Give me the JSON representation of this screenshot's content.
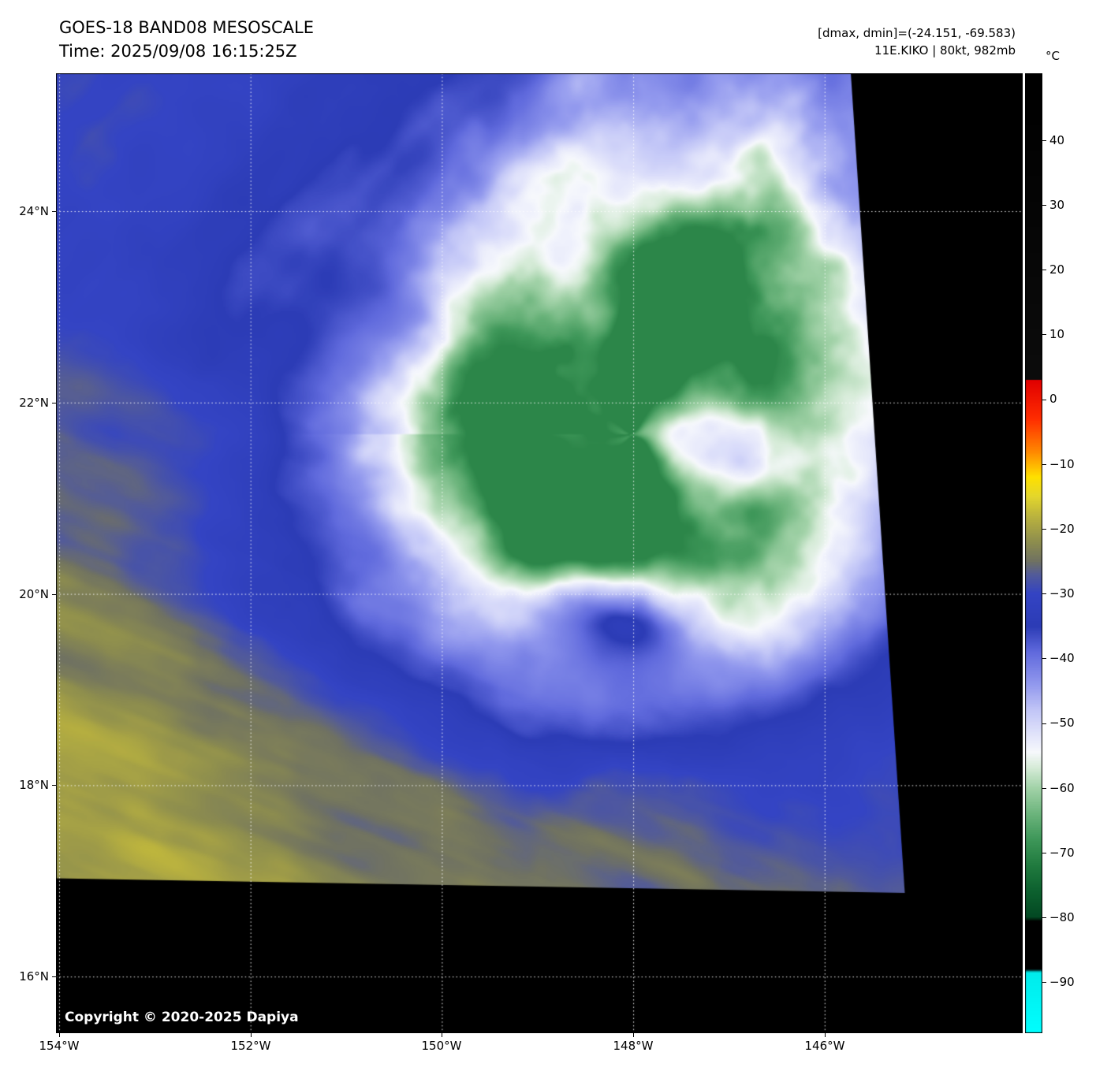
{
  "header": {
    "title": "GOES-18 BAND08 MESOSCALE",
    "time": "Time: 2025/09/08 16:15:25Z",
    "range_info": "[dmax, dmin]=(-24.151, -69.583)",
    "storm_info": "11E.KIKO | 80kt, 982mb"
  },
  "axes": {
    "lat": [
      "24°N",
      "22°N",
      "20°N",
      "18°N",
      "16°N"
    ],
    "lon": [
      "154°W",
      "152°W",
      "150°W",
      "148°W",
      "146°W"
    ]
  },
  "colorbar": {
    "unit": "°C",
    "ticks": [
      "40",
      "30",
      "20",
      "10",
      "0",
      "−10",
      "−20",
      "−30",
      "−40",
      "−50",
      "−60",
      "−70",
      "−80",
      "−90"
    ]
  },
  "map": {
    "copyright": "Copyright © 2020-2025 Dapiya"
  },
  "chart_data": {
    "type": "heatmap",
    "title": "GOES-18 BAND08 MESOSCALE",
    "time_utc": "2025/09/08 16:15:25Z",
    "dmax_c": -24.151,
    "dmin_c": -69.583,
    "storm": {
      "id": "11E",
      "name": "KIKO",
      "intensity_kt": 80,
      "pressure_mb": 982
    },
    "x_axis": {
      "label": "longitude",
      "ticks": [
        "154°W",
        "152°W",
        "150°W",
        "148°W",
        "146°W"
      ]
    },
    "y_axis": {
      "label": "latitude",
      "ticks": [
        "24°N",
        "22°N",
        "20°N",
        "18°N",
        "16°N"
      ]
    },
    "colorbar": {
      "unit": "°C",
      "ticks_c": [
        40,
        30,
        20,
        10,
        0,
        -10,
        -20,
        -30,
        -40,
        -50,
        -60,
        -70,
        -80,
        -90
      ]
    },
    "grid": "dotted-white"
  }
}
